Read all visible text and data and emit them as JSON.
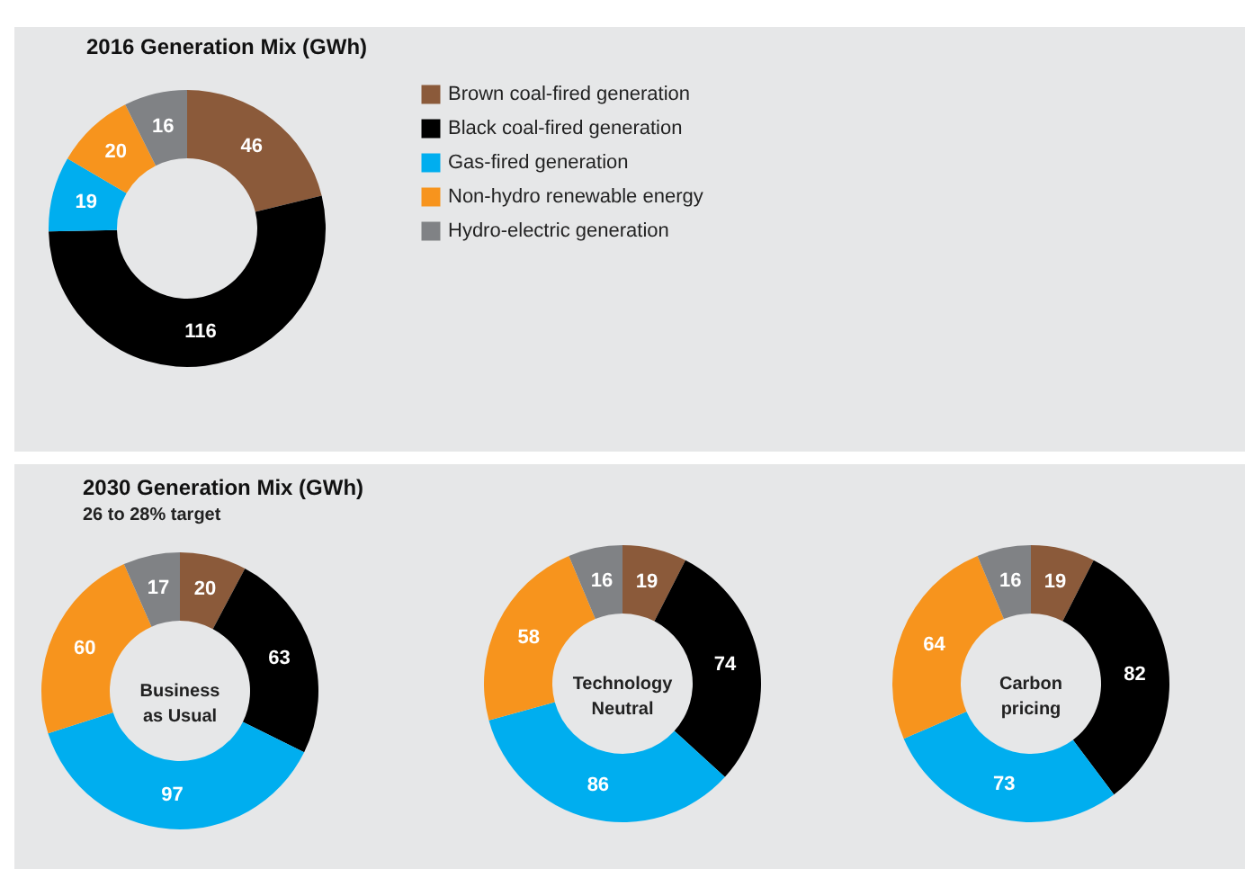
{
  "chart_data": [
    {
      "type": "donut",
      "title": "2016 Generation Mix (GWh)",
      "categories": [
        "Brown coal-fired generation",
        "Black coal-fired generation",
        "Gas-fired generation",
        "Non-hydro renewable energy",
        "Hydro-electric generation"
      ],
      "values": [
        46,
        116,
        19,
        20,
        16
      ],
      "colors": [
        "#8b5a3a",
        "#000000",
        "#00aeef",
        "#f7941d",
        "#808285"
      ],
      "data_labels": true,
      "legend": "right"
    },
    {
      "type": "donut",
      "title": "2030 Generation Mix (GWh)",
      "subtitle": "26 to 28% target",
      "annotations": [
        "Business as Usual"
      ],
      "categories": [
        null,
        null,
        null,
        null,
        null
      ],
      "values": [
        20,
        63,
        97,
        60,
        17
      ],
      "colors": [
        "#8b5a3a",
        "#000000",
        "#00aeef",
        "#f7941d",
        "#808285"
      ],
      "data_labels": true
    },
    {
      "type": "donut",
      "annotations": [
        "Technology Neutral"
      ],
      "categories": [
        null,
        null,
        null,
        null,
        null
      ],
      "values": [
        19,
        74,
        86,
        58,
        16
      ],
      "colors": [
        "#8b5a3a",
        "#000000",
        "#00aeef",
        "#f7941d",
        "#808285"
      ],
      "data_labels": true
    },
    {
      "type": "donut",
      "annotations": [
        "Carbon pricing"
      ],
      "categories": [
        null,
        null,
        null,
        null,
        null
      ],
      "values": [
        19,
        82,
        73,
        64,
        16
      ],
      "colors": [
        "#8b5a3a",
        "#000000",
        "#00aeef",
        "#f7941d",
        "#808285"
      ],
      "data_labels": true
    }
  ]
}
